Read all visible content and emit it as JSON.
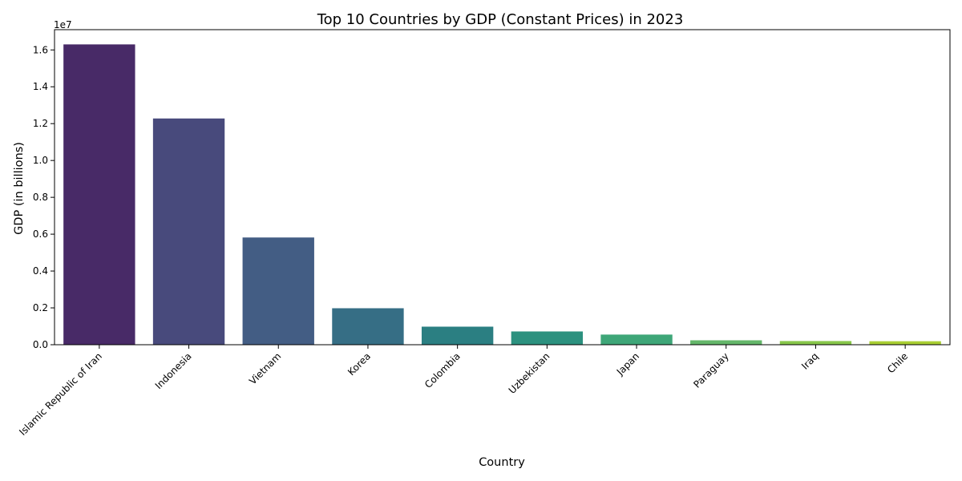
{
  "chart_data": {
    "type": "bar",
    "title": "Top 10 Countries by GDP (Constant Prices) in 2023",
    "xlabel": "Country",
    "ylabel": "GDP (in billions)",
    "y_offset_label": "1e7",
    "categories": [
      "Islamic Republic of Iran",
      "Indonesia",
      "Vietnam",
      "Korea",
      "Colombia",
      "Uzbekistan",
      "Japan",
      "Paraguay",
      "Iraq",
      "Chile"
    ],
    "values": [
      16300000,
      12280000,
      5820000,
      1980000,
      980000,
      720000,
      550000,
      240000,
      200000,
      190000
    ],
    "colors": [
      "#482a67",
      "#484a7c",
      "#435d84",
      "#366e85",
      "#2b7f82",
      "#2c917f",
      "#3ea678",
      "#64b76a",
      "#88c74b",
      "#a9cf33"
    ],
    "ylim": [
      0,
      17100000
    ],
    "yticks": [
      0,
      2000000,
      4000000,
      6000000,
      8000000,
      10000000,
      12000000,
      14000000,
      16000000
    ],
    "ytick_labels": [
      "0.0",
      "0.2",
      "0.4",
      "0.6",
      "0.8",
      "1.0",
      "1.2",
      "1.4",
      "1.6"
    ],
    "grid": false,
    "legend": "none"
  }
}
